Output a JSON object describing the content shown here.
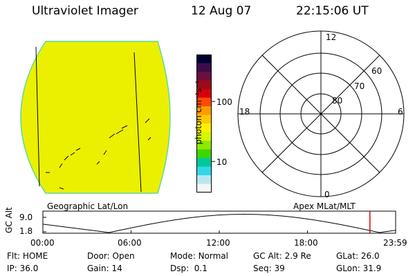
{
  "header": {
    "title": "Ultraviolet Imager",
    "date": "12 Aug 07",
    "time": "22:15:06 UT"
  },
  "colorbar": {
    "unit_label": "photon cm⁻²s⁻¹",
    "ticks": [
      "100",
      "10"
    ],
    "colors": [
      "#000033",
      "#3b0d4a",
      "#6a1040",
      "#9c0a1c",
      "#d4000c",
      "#ff4a00",
      "#ff9a00",
      "#ffc800",
      "#fff000",
      "#d2f500",
      "#90e800",
      "#3cd600",
      "#00c898",
      "#30d8e8",
      "#b8e6f0",
      "#f6f6f6"
    ]
  },
  "geo_panel": {
    "label": "Geographic Lat/Lon",
    "fill_color": "#eaf000",
    "edge_color": "#60d8a0"
  },
  "polar_panel": {
    "label": "Apex MLat/MLT",
    "mlt_labels": {
      "top": "12",
      "left": "18",
      "right": "6",
      "bottom": "0"
    },
    "lat_labels": [
      "60",
      "70",
      "80"
    ]
  },
  "altitude_plot": {
    "ylabel": "GC Alt",
    "yticks": [
      "9.0",
      "1.8"
    ],
    "xticks": [
      "00:00",
      "06:00",
      "12:00",
      "18:00",
      "23:59"
    ],
    "current_hour": 22.25,
    "marker_color": "#dd0000"
  },
  "info": {
    "row1": [
      {
        "label": "Flt:",
        "value": "HOME"
      },
      {
        "label": "Door:",
        "value": "Open"
      },
      {
        "label": "Mode:",
        "value": "Normal"
      },
      {
        "label": "GC Alt:",
        "value": "2.9 Re"
      },
      {
        "label": "GLat:",
        "value": "26.0"
      }
    ],
    "row2": [
      {
        "label": "IP:",
        "value": "36.0"
      },
      {
        "label": "Gain:",
        "value": "14"
      },
      {
        "label": "Dsp:",
        "value": "0.1"
      },
      {
        "label": "Seq:",
        "value": "39"
      },
      {
        "label": "GLon:",
        "value": "31.9"
      }
    ]
  }
}
